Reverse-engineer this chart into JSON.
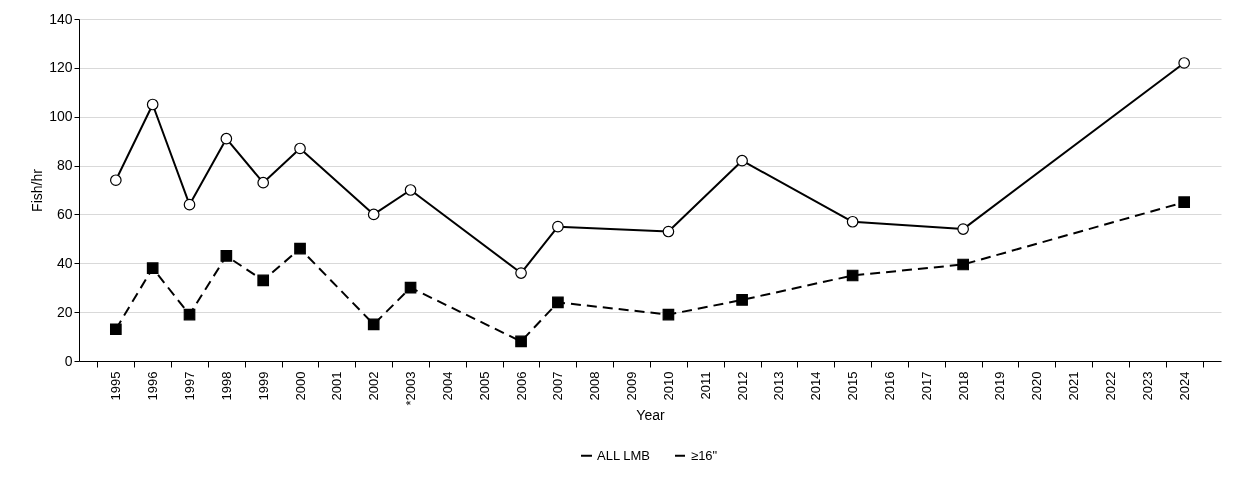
{
  "chart_data": {
    "type": "line",
    "xlabel": "Year",
    "ylabel": "Fish/hr",
    "categories": [
      "1995",
      "1996",
      "1997",
      "1998",
      "1999",
      "2000",
      "2001",
      "2002",
      "*2003",
      "2004",
      "2005",
      "2006",
      "2007",
      "2008",
      "2009",
      "2010",
      "2011",
      "2012",
      "2013",
      "2014",
      "2015",
      "2016",
      "2017",
      "2018",
      "2019",
      "2020",
      "2021",
      "2022",
      "2023",
      "2024"
    ],
    "series": [
      {
        "name": "ALL LMB",
        "color": "#000000",
        "marker": "circle",
        "line_style": "solid",
        "values": [
          74,
          105,
          64,
          91,
          73,
          87,
          null,
          60,
          70,
          null,
          null,
          36,
          55,
          null,
          null,
          53,
          null,
          82,
          null,
          null,
          57,
          null,
          null,
          54,
          null,
          null,
          null,
          null,
          null,
          122
        ]
      },
      {
        "name": "≥16\"",
        "color": "#000000",
        "marker": "square",
        "line_style": "dashed",
        "values": [
          13,
          38,
          19,
          43,
          33,
          46,
          null,
          15,
          30,
          null,
          null,
          8,
          24,
          null,
          null,
          19,
          null,
          25,
          null,
          null,
          35,
          null,
          null,
          39.5,
          null,
          null,
          null,
          null,
          null,
          65
        ]
      }
    ],
    "ylim": [
      0,
      140
    ],
    "yticks": [
      0,
      20,
      40,
      60,
      80,
      100,
      120,
      140
    ],
    "grid": "y",
    "legend": "bottom"
  }
}
